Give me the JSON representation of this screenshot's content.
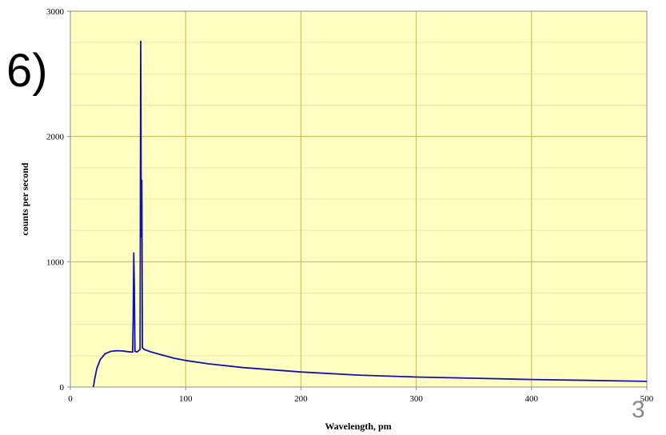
{
  "slide": {
    "fragment_text": "6)",
    "page_number": "3"
  },
  "colors": {
    "plot_background": "#ffffc2",
    "major_grid": "#c7b45a",
    "minor_grid": "#efe6a6",
    "series_line": "#1010b4"
  },
  "chart_data": {
    "type": "line",
    "title": "",
    "xlabel": "Wavelength, pm",
    "ylabel": "counts per second",
    "xlim": [
      0,
      500
    ],
    "ylim": [
      0,
      3000
    ],
    "x_ticks": [
      0,
      100,
      200,
      300,
      400,
      500
    ],
    "y_ticks": [
      0,
      1000,
      2000,
      3000
    ],
    "x_tick_labels": [
      "0",
      "100",
      "200",
      "300",
      "400",
      "500"
    ],
    "y_tick_labels": [
      "0",
      "1000",
      "2000",
      "3000"
    ],
    "grid": true,
    "legend": "none",
    "series": [
      {
        "x": [
          20,
          21,
          23,
          26,
          30,
          35,
          40,
          45,
          50,
          54,
          54.5,
          55,
          55.5,
          56,
          58,
          60.5,
          61,
          61.5,
          62,
          62.5,
          63,
          63.5,
          64,
          70,
          80,
          90,
          100,
          120,
          150,
          200,
          250,
          300,
          350,
          400,
          450,
          500
        ],
        "y": [
          0,
          60,
          150,
          220,
          265,
          285,
          290,
          288,
          282,
          278,
          560,
          1070,
          800,
          285,
          280,
          300,
          2760,
          1200,
          1650,
          310,
          310,
          305,
          300,
          280,
          255,
          230,
          212,
          185,
          155,
          120,
          95,
          80,
          70,
          60,
          53,
          45
        ]
      }
    ]
  }
}
